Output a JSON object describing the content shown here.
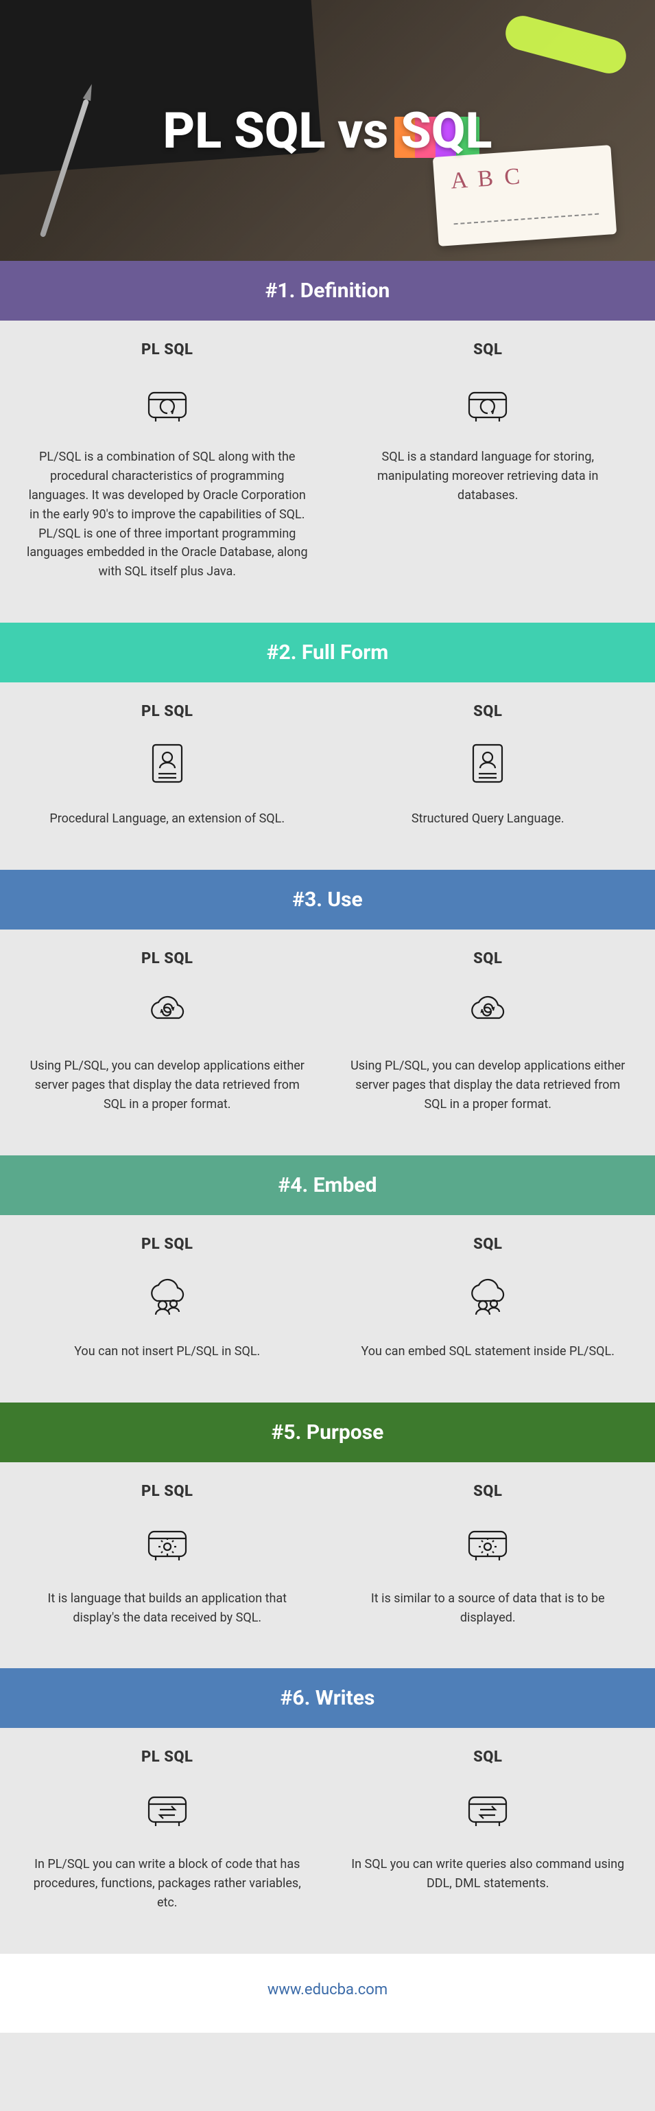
{
  "hero": {
    "title": "PL SQL vs SQL",
    "notebook_text": "A B C"
  },
  "columns": {
    "left_label": "PL SQL",
    "right_label": "SQL"
  },
  "sections": [
    {
      "num": "#1.",
      "title": "Definition",
      "header_color": "#6b5b95",
      "icon": "backup",
      "left": "PL/SQL is a combination of SQL along with the procedural characteristics of programming languages. It was developed by Oracle Corporation in the early 90's to improve the capabilities of SQL. PL/SQL is one of three important programming languages embedded in the Oracle Database, along with SQL itself plus Java.",
      "right": "SQL is a standard language for storing, manipulating moreover retrieving data in databases."
    },
    {
      "num": "#2.",
      "title": "Full Form",
      "header_color": "#3fd0b0",
      "icon": "profile",
      "left": "Procedural Language, an extension of SQL.",
      "right": "Structured Query Language."
    },
    {
      "num": "#3.",
      "title": "Use",
      "header_color": "#4f7fb8",
      "icon": "cloud-sync",
      "left": "Using PL/SQL, you can develop applications either server pages that display the data retrieved from SQL in a proper format.",
      "right": "Using PL/SQL, you can develop applications either server pages that display the data retrieved from SQL in a proper format."
    },
    {
      "num": "#4.",
      "title": "Embed",
      "header_color": "#5aa98c",
      "icon": "cloud-people",
      "left": "You can not insert PL/SQL in SQL.",
      "right": "You can embed SQL statement inside PL/SQL."
    },
    {
      "num": "#5.",
      "title": "Purpose",
      "header_color": "#3d7a2d",
      "icon": "server-gear",
      "left": "It is language that builds an application that display's the data received by SQL.",
      "right": "It is similar to a source of data that is to be displayed."
    },
    {
      "num": "#6.",
      "title": "Writes",
      "header_color": "#4f7fb8",
      "icon": "server-arrows",
      "left": "In PL/SQL you can write a block of code that has procedures, functions, packages rather variables, etc.",
      "right": "In SQL you can write queries also command using DDL, DML statements."
    }
  ],
  "footer": {
    "url": "www.educba.com"
  }
}
